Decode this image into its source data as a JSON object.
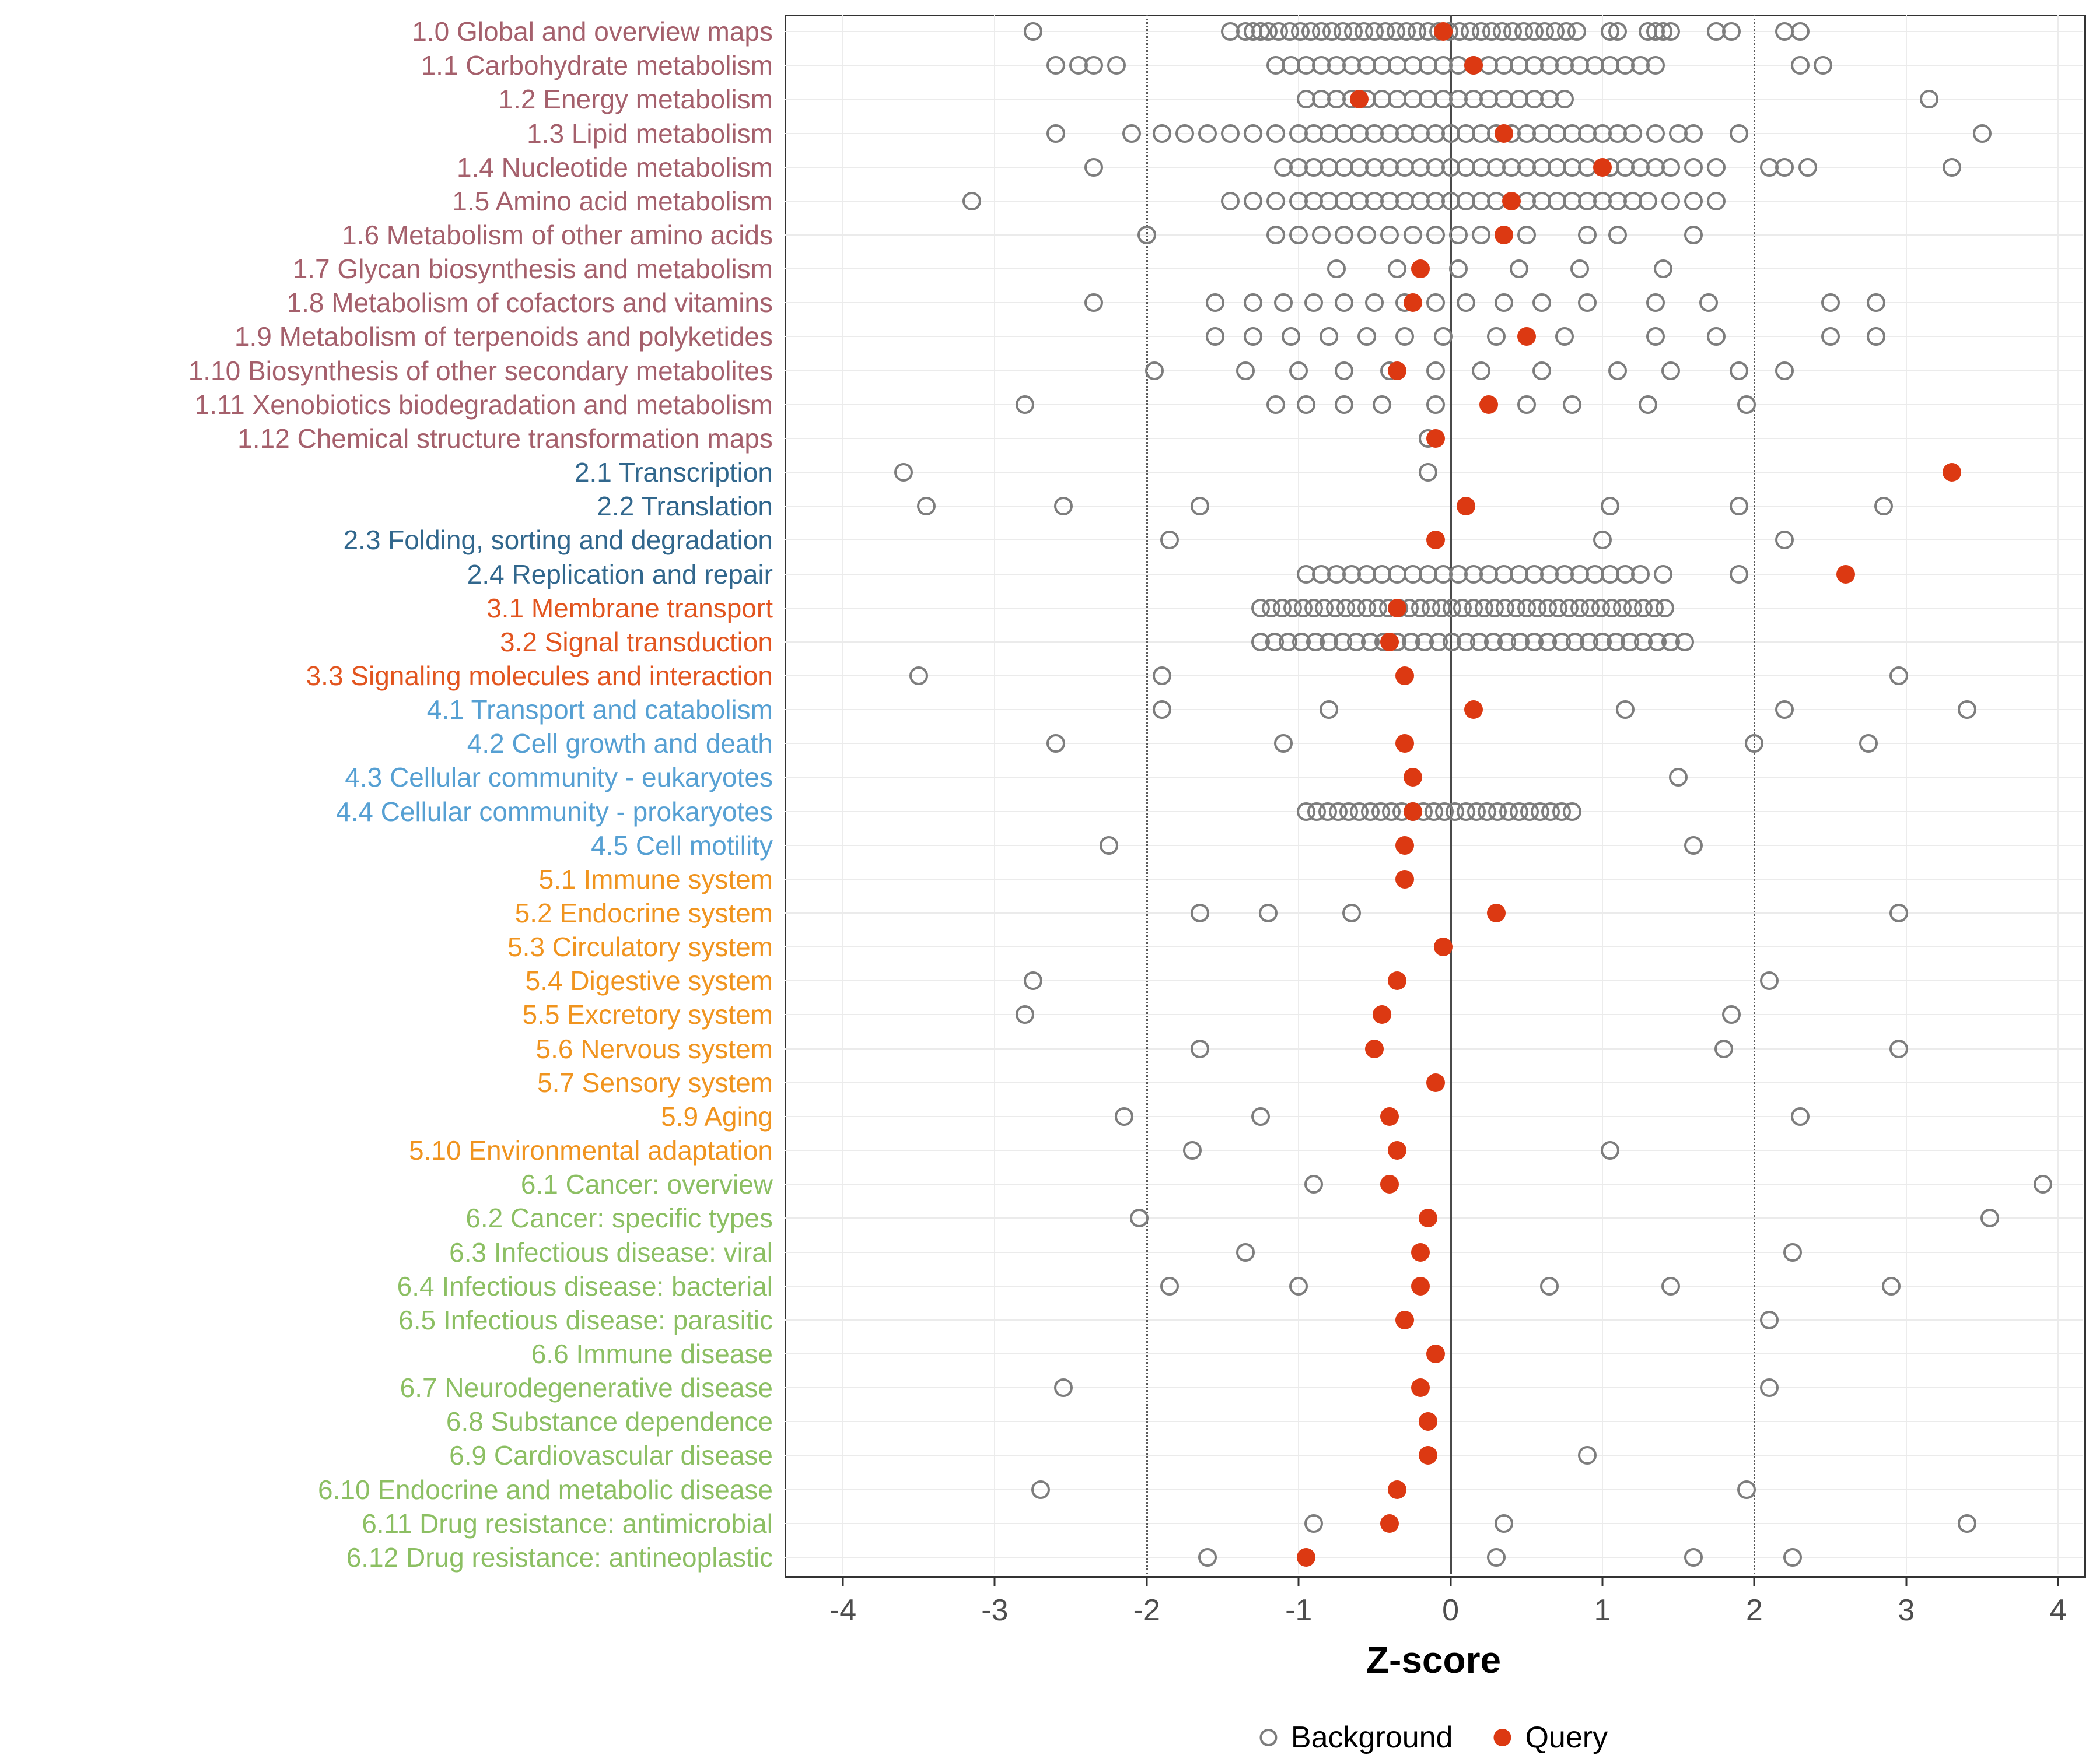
{
  "chart_data": {
    "type": "scatter",
    "title": "",
    "xlabel": "Z-score",
    "xlim": [
      -4.35,
      4.15
    ],
    "xticks": [
      -4,
      -3,
      -2,
      -1,
      0,
      1,
      2,
      3,
      4
    ],
    "reference_lines": {
      "solid": [
        0
      ],
      "dotted": [
        -2,
        2
      ]
    },
    "grid": true,
    "legend_position": "bottom",
    "legend": {
      "background": "Background",
      "query": "Query"
    },
    "point_colors": {
      "background_stroke": "#7d7d7d",
      "query_fill": "#dc3912"
    },
    "group_colors": {
      "1": "#a5606c",
      "2": "#31678d",
      "3": "#e2551f",
      "4": "#56a0d3",
      "5": "#f0941f",
      "6": "#8cbf63"
    },
    "rows": [
      {
        "label": "1.0 Global and overview maps",
        "group": "1",
        "query": -0.05,
        "background": [
          -2.75,
          -1.45,
          -1.35,
          -1.3,
          -1.25,
          -1.2,
          -1.13,
          -1.06,
          -0.99,
          -0.92,
          -0.85,
          -0.78,
          -0.71,
          -0.64,
          -0.57,
          -0.5,
          -0.43,
          -0.36,
          -0.29,
          -0.22,
          -0.15,
          -0.08,
          -0.01,
          0.06,
          0.13,
          0.2,
          0.27,
          0.34,
          0.41,
          0.48,
          0.55,
          0.62,
          0.69,
          0.76,
          0.83,
          1.05,
          1.1,
          1.3,
          1.35,
          1.4,
          1.45,
          1.75,
          1.85,
          2.2,
          2.3
        ]
      },
      {
        "label": "1.1 Carbohydrate metabolism",
        "group": "1",
        "query": 0.15,
        "background": [
          -2.6,
          -2.45,
          -2.35,
          -2.2,
          -1.15,
          -1.05,
          -0.95,
          -0.85,
          -0.75,
          -0.65,
          -0.55,
          -0.45,
          -0.35,
          -0.25,
          -0.15,
          -0.05,
          0.05,
          0.15,
          0.25,
          0.35,
          0.45,
          0.55,
          0.65,
          0.75,
          0.85,
          0.95,
          1.05,
          1.15,
          1.25,
          1.35,
          2.3,
          2.45
        ]
      },
      {
        "label": "1.2 Energy metabolism",
        "group": "1",
        "query": -0.6,
        "background": [
          -0.95,
          -0.85,
          -0.75,
          -0.65,
          -0.55,
          -0.45,
          -0.35,
          -0.25,
          -0.15,
          -0.05,
          0.05,
          0.15,
          0.25,
          0.35,
          0.45,
          0.55,
          0.65,
          0.75,
          3.15
        ]
      },
      {
        "label": "1.3 Lipid metabolism",
        "group": "1",
        "query": 0.35,
        "background": [
          -2.6,
          -2.1,
          -1.9,
          -1.75,
          -1.6,
          -1.45,
          -1.3,
          -1.15,
          -1.0,
          -0.9,
          -0.8,
          -0.7,
          -0.6,
          -0.5,
          -0.4,
          -0.3,
          -0.2,
          -0.1,
          0.0,
          0.1,
          0.2,
          0.3,
          0.4,
          0.5,
          0.6,
          0.7,
          0.8,
          0.9,
          1.0,
          1.1,
          1.2,
          1.35,
          1.5,
          1.6,
          1.9,
          3.5
        ]
      },
      {
        "label": "1.4 Nucleotide metabolism",
        "group": "1",
        "query": 1.0,
        "background": [
          -2.35,
          -1.1,
          -1.0,
          -0.9,
          -0.8,
          -0.7,
          -0.6,
          -0.5,
          -0.4,
          -0.3,
          -0.2,
          -0.1,
          0.0,
          0.1,
          0.2,
          0.3,
          0.4,
          0.5,
          0.6,
          0.7,
          0.8,
          0.9,
          1.05,
          1.15,
          1.25,
          1.35,
          1.45,
          1.6,
          1.75,
          2.1,
          2.2,
          2.35,
          3.3
        ]
      },
      {
        "label": "1.5 Amino acid metabolism",
        "group": "1",
        "query": 0.4,
        "background": [
          -3.15,
          -1.45,
          -1.3,
          -1.15,
          -1.0,
          -0.9,
          -0.8,
          -0.7,
          -0.6,
          -0.5,
          -0.4,
          -0.3,
          -0.2,
          -0.1,
          0.0,
          0.1,
          0.2,
          0.3,
          0.5,
          0.6,
          0.7,
          0.8,
          0.9,
          1.0,
          1.1,
          1.2,
          1.3,
          1.45,
          1.6,
          1.75
        ]
      },
      {
        "label": "1.6 Metabolism of other amino acids",
        "group": "1",
        "query": 0.35,
        "background": [
          -2.0,
          -1.15,
          -1.0,
          -0.85,
          -0.7,
          -0.55,
          -0.4,
          -0.25,
          -0.1,
          0.05,
          0.2,
          0.5,
          0.9,
          1.1,
          1.6
        ]
      },
      {
        "label": "1.7 Glycan biosynthesis and metabolism",
        "group": "1",
        "query": -0.2,
        "background": [
          -0.75,
          -0.35,
          0.05,
          0.45,
          0.85,
          1.4
        ]
      },
      {
        "label": "1.8 Metabolism of cofactors and vitamins",
        "group": "1",
        "query": -0.25,
        "background": [
          -2.35,
          -1.55,
          -1.3,
          -1.1,
          -0.9,
          -0.7,
          -0.5,
          -0.3,
          -0.1,
          0.1,
          0.35,
          0.6,
          0.9,
          1.35,
          1.7,
          2.5,
          2.8
        ]
      },
      {
        "label": "1.9 Metabolism of terpenoids and polyketides",
        "group": "1",
        "query": 0.5,
        "background": [
          -1.55,
          -1.3,
          -1.05,
          -0.8,
          -0.55,
          -0.3,
          -0.05,
          0.3,
          0.75,
          1.35,
          1.75,
          2.5,
          2.8
        ]
      },
      {
        "label": "1.10 Biosynthesis of other secondary metabolites",
        "group": "1",
        "query": -0.35,
        "background": [
          -1.95,
          -1.35,
          -1.0,
          -0.7,
          -0.4,
          -0.1,
          0.2,
          0.6,
          1.1,
          1.45,
          1.9,
          2.2
        ]
      },
      {
        "label": "1.11 Xenobiotics biodegradation and metabolism",
        "group": "1",
        "query": 0.25,
        "background": [
          -2.8,
          -1.15,
          -0.95,
          -0.7,
          -0.45,
          -0.1,
          0.5,
          0.8,
          1.3,
          1.95
        ]
      },
      {
        "label": "1.12 Chemical structure transformation maps",
        "group": "1",
        "query": -0.1,
        "background": [
          -0.15
        ]
      },
      {
        "label": "2.1 Transcription",
        "group": "2",
        "query": 3.3,
        "background": [
          -3.6,
          -0.15
        ]
      },
      {
        "label": "2.2 Translation",
        "group": "2",
        "query": 0.1,
        "background": [
          -3.45,
          -2.55,
          -1.65,
          1.05,
          1.9,
          2.85
        ]
      },
      {
        "label": "2.3 Folding, sorting and degradation",
        "group": "2",
        "query": -0.1,
        "background": [
          -1.85,
          1.0,
          2.2
        ]
      },
      {
        "label": "2.4 Replication and repair",
        "group": "2",
        "query": 2.6,
        "background": [
          -0.95,
          -0.85,
          -0.75,
          -0.65,
          -0.55,
          -0.45,
          -0.35,
          -0.25,
          -0.15,
          -0.05,
          0.05,
          0.15,
          0.25,
          0.35,
          0.45,
          0.55,
          0.65,
          0.75,
          0.85,
          0.95,
          1.05,
          1.15,
          1.25,
          1.4,
          1.9
        ]
      },
      {
        "label": "3.1 Membrane transport",
        "group": "3",
        "query": -0.35,
        "background": [
          -1.25,
          -1.18,
          -1.11,
          -1.04,
          -0.97,
          -0.9,
          -0.83,
          -0.76,
          -0.69,
          -0.62,
          -0.55,
          -0.48,
          -0.41,
          -0.34,
          -0.27,
          -0.2,
          -0.13,
          -0.06,
          0.01,
          0.08,
          0.15,
          0.22,
          0.29,
          0.36,
          0.43,
          0.5,
          0.57,
          0.64,
          0.71,
          0.78,
          0.85,
          0.92,
          0.99,
          1.06,
          1.13,
          1.2,
          1.27,
          1.34,
          1.41
        ]
      },
      {
        "label": "3.2 Signal transduction",
        "group": "3",
        "query": -0.4,
        "background": [
          -1.25,
          -1.16,
          -1.07,
          -0.98,
          -0.89,
          -0.8,
          -0.71,
          -0.62,
          -0.53,
          -0.44,
          -0.35,
          -0.26,
          -0.17,
          -0.08,
          0.01,
          0.1,
          0.19,
          0.28,
          0.37,
          0.46,
          0.55,
          0.64,
          0.73,
          0.82,
          0.91,
          1.0,
          1.09,
          1.18,
          1.27,
          1.36,
          1.45,
          1.54
        ]
      },
      {
        "label": "3.3 Signaling molecules and interaction",
        "group": "3",
        "query": -0.3,
        "background": [
          -3.5,
          -1.9,
          2.95
        ]
      },
      {
        "label": "4.1 Transport and catabolism",
        "group": "4",
        "query": 0.15,
        "background": [
          -1.9,
          -0.8,
          1.15,
          2.2,
          3.4
        ]
      },
      {
        "label": "4.2 Cell growth and death",
        "group": "4",
        "query": -0.3,
        "background": [
          -2.6,
          -1.1,
          2.0,
          2.75
        ]
      },
      {
        "label": "4.3 Cellular community - eukaryotes",
        "group": "4",
        "query": -0.25,
        "background": [
          1.5
        ]
      },
      {
        "label": "4.4 Cellular community - prokaryotes",
        "group": "4",
        "query": -0.25,
        "background": [
          -0.95,
          -0.88,
          -0.81,
          -0.74,
          -0.67,
          -0.6,
          -0.53,
          -0.46,
          -0.39,
          -0.32,
          -0.25,
          -0.18,
          -0.11,
          -0.04,
          0.03,
          0.1,
          0.17,
          0.24,
          0.31,
          0.38,
          0.45,
          0.52,
          0.59,
          0.66,
          0.73,
          0.8
        ]
      },
      {
        "label": "4.5 Cell motility",
        "group": "4",
        "query": -0.3,
        "background": [
          -2.25,
          1.6
        ]
      },
      {
        "label": "5.1 Immune system",
        "group": "5",
        "query": -0.3,
        "background": []
      },
      {
        "label": "5.2 Endocrine system",
        "group": "5",
        "query": 0.3,
        "background": [
          -1.65,
          -1.2,
          -0.65,
          2.95
        ]
      },
      {
        "label": "5.3 Circulatory system",
        "group": "5",
        "query": -0.05,
        "background": []
      },
      {
        "label": "5.4 Digestive system",
        "group": "5",
        "query": -0.35,
        "background": [
          -2.75,
          2.1
        ]
      },
      {
        "label": "5.5 Excretory system",
        "group": "5",
        "query": -0.45,
        "background": [
          -2.8,
          1.85
        ]
      },
      {
        "label": "5.6 Nervous system",
        "group": "5",
        "query": -0.5,
        "background": [
          -1.65,
          1.8,
          2.95
        ]
      },
      {
        "label": "5.7 Sensory system",
        "group": "5",
        "query": -0.1,
        "background": []
      },
      {
        "label": "5.9 Aging",
        "group": "5",
        "query": -0.4,
        "background": [
          -2.15,
          -1.25,
          2.3
        ]
      },
      {
        "label": "5.10 Environmental adaptation",
        "group": "5",
        "query": -0.35,
        "background": [
          -1.7,
          1.05
        ]
      },
      {
        "label": "6.1 Cancer: overview",
        "group": "6",
        "query": -0.4,
        "background": [
          -0.9,
          3.9
        ]
      },
      {
        "label": "6.2 Cancer: specific types",
        "group": "6",
        "query": -0.15,
        "background": [
          -2.05,
          3.55
        ]
      },
      {
        "label": "6.3 Infectious disease: viral",
        "group": "6",
        "query": -0.2,
        "background": [
          -1.35,
          2.25
        ]
      },
      {
        "label": "6.4 Infectious disease: bacterial",
        "group": "6",
        "query": -0.2,
        "background": [
          -1.85,
          -1.0,
          0.65,
          1.45,
          2.9
        ]
      },
      {
        "label": "6.5 Infectious disease: parasitic",
        "group": "6",
        "query": -0.3,
        "background": [
          2.1
        ]
      },
      {
        "label": "6.6 Immune disease",
        "group": "6",
        "query": -0.1,
        "background": []
      },
      {
        "label": "6.7 Neurodegenerative disease",
        "group": "6",
        "query": -0.2,
        "background": [
          -2.55,
          2.1
        ]
      },
      {
        "label": "6.8 Substance dependence",
        "group": "6",
        "query": -0.15,
        "background": []
      },
      {
        "label": "6.9 Cardiovascular disease",
        "group": "6",
        "query": -0.15,
        "background": [
          0.9
        ]
      },
      {
        "label": "6.10 Endocrine and metabolic disease",
        "group": "6",
        "query": -0.35,
        "background": [
          -2.7,
          1.95
        ]
      },
      {
        "label": "6.11 Drug resistance: antimicrobial",
        "group": "6",
        "query": -0.4,
        "background": [
          -0.9,
          0.35,
          3.4
        ]
      },
      {
        "label": "6.12 Drug resistance: antineoplastic",
        "group": "6",
        "query": -0.95,
        "background": [
          -1.6,
          0.3,
          1.6,
          2.25
        ]
      }
    ]
  }
}
